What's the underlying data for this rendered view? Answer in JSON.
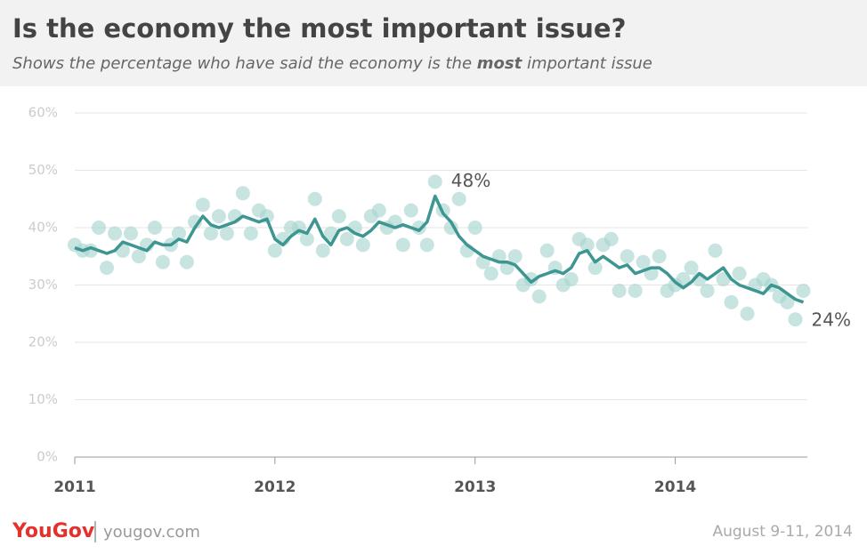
{
  "chart_data": {
    "type": "scatter",
    "title": "Is the economy the most important issue?",
    "subtitle": [
      "Shows the percentage who have said the economy is the ",
      "most",
      " important issue"
    ],
    "x": [
      2011.0,
      2011.04,
      2011.08,
      2011.12,
      2011.16,
      2011.2,
      2011.24,
      2011.28,
      2011.32,
      2011.36,
      2011.4,
      2011.44,
      2011.48,
      2011.52,
      2011.56,
      2011.6,
      2011.64,
      2011.68,
      2011.72,
      2011.76,
      2011.8,
      2011.84,
      2011.88,
      2011.92,
      2011.96,
      2012.0,
      2012.04,
      2012.08,
      2012.12,
      2012.16,
      2012.2,
      2012.24,
      2012.28,
      2012.32,
      2012.36,
      2012.4,
      2012.44,
      2012.48,
      2012.52,
      2012.56,
      2012.6,
      2012.64,
      2012.68,
      2012.72,
      2012.76,
      2012.8,
      2012.84,
      2012.88,
      2012.92,
      2012.96,
      2013.0,
      2013.04,
      2013.08,
      2013.12,
      2013.16,
      2013.2,
      2013.24,
      2013.28,
      2013.32,
      2013.36,
      2013.4,
      2013.44,
      2013.48,
      2013.52,
      2013.56,
      2013.6,
      2013.64,
      2013.68,
      2013.72,
      2013.76,
      2013.8,
      2013.84,
      2013.88,
      2013.92,
      2013.96,
      2014.0,
      2014.04,
      2014.08,
      2014.12,
      2014.16,
      2014.2,
      2014.24,
      2014.28,
      2014.32,
      2014.36,
      2014.4,
      2014.44,
      2014.48,
      2014.52,
      2014.56,
      2014.6,
      2014.64
    ],
    "series": [
      {
        "mode": "markers",
        "color": "#a9d6d0",
        "values": [
          37,
          36,
          36,
          40,
          33,
          39,
          36,
          39,
          35,
          37,
          40,
          34,
          37,
          39,
          34,
          41,
          44,
          39,
          42,
          39,
          42,
          46,
          39,
          43,
          42,
          36,
          38,
          40,
          40,
          38,
          45,
          36,
          39,
          42,
          38,
          40,
          37,
          42,
          43,
          40,
          41,
          37,
          43,
          40,
          37,
          48,
          43,
          40,
          45,
          36,
          40,
          34,
          32,
          35,
          33,
          35,
          30,
          31,
          28,
          36,
          33,
          30,
          31,
          38,
          37,
          33,
          37,
          38,
          29,
          35,
          29,
          34,
          32,
          35,
          29,
          30,
          31,
          33,
          31,
          29,
          36,
          31,
          27,
          32,
          25,
          30,
          31,
          30,
          28,
          27,
          24,
          29
        ]
      },
      {
        "mode": "line",
        "color": "#3d9691",
        "values": [
          36.5,
          36,
          36.5,
          36,
          35.5,
          36,
          37.5,
          37,
          36.5,
          36,
          37.5,
          37,
          37,
          38,
          37.5,
          40,
          42,
          40.5,
          40,
          40.5,
          41,
          42,
          41.5,
          41,
          41.5,
          38,
          37,
          38.5,
          39.5,
          39,
          41.5,
          38.5,
          37,
          39.5,
          40,
          39,
          38.5,
          39.5,
          41,
          40.5,
          40,
          40.5,
          40,
          39.5,
          41,
          45.5,
          42.5,
          41,
          38.5,
          37,
          36,
          35,
          34.5,
          34,
          34,
          33.5,
          32,
          30.5,
          31.5,
          32,
          32.5,
          32,
          33,
          35.5,
          36,
          34,
          35,
          34,
          33,
          33.5,
          32,
          32.5,
          33,
          33,
          32,
          30.5,
          29.5,
          30.5,
          32,
          31,
          32,
          33,
          31,
          30,
          29.5,
          29,
          28.5,
          30,
          29.5,
          28.5,
          27.5,
          27
        ]
      }
    ],
    "annotations": [
      {
        "text": "48%",
        "x": 2012.8,
        "y": 48
      },
      {
        "text": "24%",
        "x": 2014.6,
        "y": 24
      }
    ],
    "xlim": [
      2011,
      2014.66
    ],
    "xticks": [
      2011,
      2012,
      2013,
      2014
    ],
    "ylim": [
      0,
      60
    ],
    "yticks": [
      {
        "value": 0,
        "label": "0%"
      },
      {
        "value": 10,
        "label": "10%"
      },
      {
        "value": 20,
        "label": "20%"
      },
      {
        "value": 30,
        "label": "30%"
      },
      {
        "value": 40,
        "label": "40%"
      },
      {
        "value": 50,
        "label": "50%"
      },
      {
        "value": 60,
        "label": "60%"
      }
    ],
    "grid": true,
    "footer": {
      "logo": "YouGov",
      "site": "yougov.com",
      "date": "August 9-11, 2014"
    }
  }
}
